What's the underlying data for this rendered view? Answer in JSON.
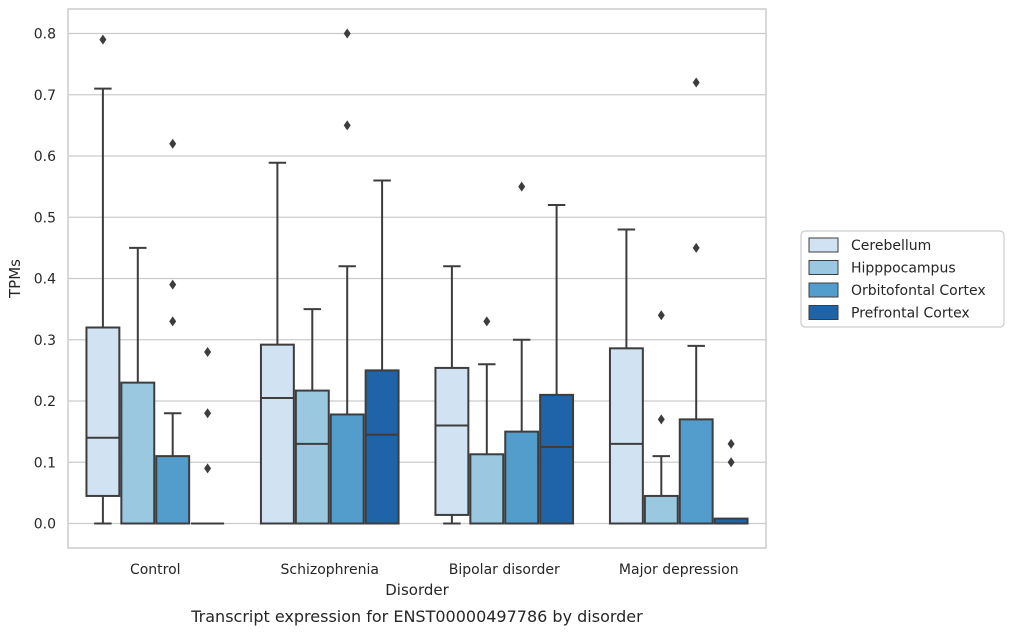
{
  "chart_data": {
    "type": "box",
    "title": "",
    "caption": "Transcript expression for ENST00000497786 by disorder",
    "xlabel": "Disorder",
    "ylabel": "TPMs",
    "ylim": [
      -0.04,
      0.84
    ],
    "yticks": [
      0.0,
      0.1,
      0.2,
      0.3,
      0.4,
      0.5,
      0.6,
      0.7,
      0.8
    ],
    "ytick_labels": [
      "0.0",
      "0.1",
      "0.2",
      "0.3",
      "0.4",
      "0.5",
      "0.6",
      "0.7",
      "0.8"
    ],
    "grid": true,
    "legend_position": "right",
    "categories": [
      "Control",
      "Schizophrenia",
      "Bipolar disorder",
      "Major depression"
    ],
    "series": [
      {
        "name": "Cerebellum",
        "color": "#d1e2f2",
        "boxes": [
          {
            "whislo": 0.0,
            "q1": 0.045,
            "med": 0.14,
            "q3": 0.32,
            "whishi": 0.71,
            "fliers": [
              0.79
            ]
          },
          {
            "whislo": 0.0,
            "q1": 0.0,
            "med": 0.205,
            "q3": 0.292,
            "whishi": 0.589,
            "fliers": []
          },
          {
            "whislo": 0.0,
            "q1": 0.014,
            "med": 0.16,
            "q3": 0.254,
            "whishi": 0.42,
            "fliers": []
          },
          {
            "whislo": 0.0,
            "q1": 0.0,
            "med": 0.13,
            "q3": 0.286,
            "whishi": 0.48,
            "fliers": []
          }
        ]
      },
      {
        "name": "Hipppocampus",
        "color": "#9ac8e0",
        "boxes": [
          {
            "whislo": 0.0,
            "q1": 0.0,
            "med": 0.0,
            "q3": 0.23,
            "whishi": 0.45,
            "fliers": []
          },
          {
            "whislo": 0.0,
            "q1": 0.0,
            "med": 0.13,
            "q3": 0.217,
            "whishi": 0.35,
            "fliers": []
          },
          {
            "whislo": 0.0,
            "q1": 0.0,
            "med": 0.0,
            "q3": 0.113,
            "whishi": 0.26,
            "fliers": [
              0.33
            ]
          },
          {
            "whislo": 0.0,
            "q1": 0.0,
            "med": 0.0,
            "q3": 0.045,
            "whishi": 0.11,
            "fliers": [
              0.17,
              0.34
            ]
          }
        ]
      },
      {
        "name": "Orbitofontal Cortex",
        "color": "#529dcb",
        "boxes": [
          {
            "whislo": 0.0,
            "q1": 0.0,
            "med": 0.0,
            "q3": 0.11,
            "whishi": 0.18,
            "fliers": [
              0.33,
              0.39,
              0.62
            ]
          },
          {
            "whislo": 0.0,
            "q1": 0.0,
            "med": 0.0,
            "q3": 0.178,
            "whishi": 0.42,
            "fliers": [
              0.65,
              0.8
            ]
          },
          {
            "whislo": 0.0,
            "q1": 0.0,
            "med": 0.0,
            "q3": 0.15,
            "whishi": 0.3,
            "fliers": [
              0.55
            ]
          },
          {
            "whislo": 0.0,
            "q1": 0.0,
            "med": 0.0,
            "q3": 0.17,
            "whishi": 0.29,
            "fliers": [
              0.45,
              0.72
            ]
          }
        ]
      },
      {
        "name": "Prefrontal Cortex",
        "color": "#1f63a8",
        "boxes": [
          {
            "whislo": 0.0,
            "q1": 0.0,
            "med": 0.0,
            "q3": 0.0,
            "whishi": 0.0,
            "fliers": [
              0.09,
              0.18,
              0.28
            ]
          },
          {
            "whislo": 0.0,
            "q1": 0.0,
            "med": 0.145,
            "q3": 0.25,
            "whishi": 0.56,
            "fliers": []
          },
          {
            "whislo": 0.0,
            "q1": 0.0,
            "med": 0.125,
            "q3": 0.21,
            "whishi": 0.52,
            "fliers": []
          },
          {
            "whislo": 0.0,
            "q1": 0.0,
            "med": 0.0,
            "q3": 0.008,
            "whishi": 0.008,
            "fliers": [
              0.1,
              0.13
            ]
          }
        ]
      }
    ]
  }
}
